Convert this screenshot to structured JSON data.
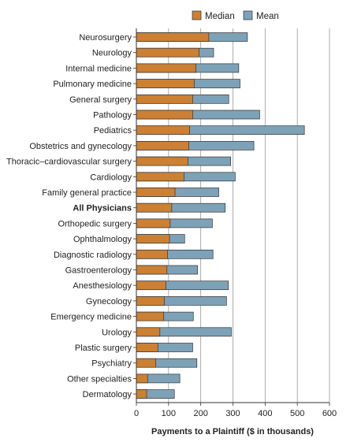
{
  "chart_data": {
    "type": "bar",
    "orientation": "horizontal",
    "layout": "overlay",
    "xlabel": "Payments to a Plaintiff ($ in thousands)",
    "xlim": [
      0,
      600
    ],
    "xticks": [
      0,
      100,
      200,
      300,
      400,
      500,
      600
    ],
    "grid": true,
    "legend_position": "top-right",
    "categories": [
      "Neurosurgery",
      "Neurology",
      "Internal medicine",
      "Pulmonary medicine",
      "General surgery",
      "Pathology",
      "Pediatrics",
      "Obstetrics and gynecology",
      "Thoracic–cardiovascular surgery",
      "Cardiology",
      "Family general practice",
      "All Physicians",
      "Orthopedic surgery",
      "Ophthalmology",
      "Diagnostic radiology",
      "Gastroenterology",
      "Anesthesiology",
      "Gynecology",
      "Emergency medicine",
      "Urology",
      "Plastic surgery",
      "Psychiatry",
      "Other specialties",
      "Dermatology"
    ],
    "bold_categories": [
      "All Physicians"
    ],
    "series": [
      {
        "name": "Median",
        "color": "#cc8033",
        "values": [
          225,
          195,
          185,
          180,
          175,
          175,
          165,
          163,
          160,
          148,
          120,
          110,
          105,
          103,
          97,
          95,
          92,
          87,
          85,
          73,
          67,
          60,
          35,
          32
        ]
      },
      {
        "name": "Mean",
        "color": "#7da2b8",
        "values": [
          345,
          240,
          318,
          322,
          287,
          383,
          522,
          365,
          293,
          307,
          256,
          276,
          236,
          150,
          238,
          190,
          286,
          280,
          177,
          295,
          175,
          188,
          135,
          118
        ]
      }
    ]
  }
}
